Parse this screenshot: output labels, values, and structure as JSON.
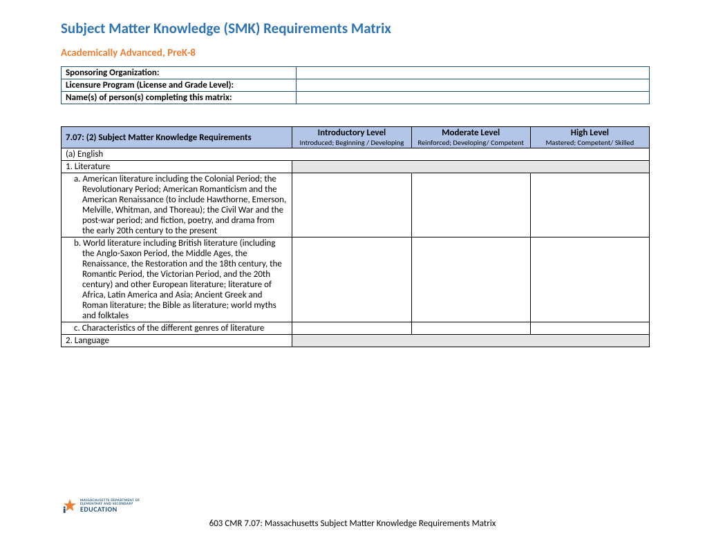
{
  "colors": {
    "title": "#2e74b5",
    "subtitle": "#ed7d31",
    "info_border": "#1f4e79",
    "header_bg": "#b4c6e7",
    "shaded_bg": "#e7e6e6",
    "text": "#000000",
    "logo_blue": "#1f4e79",
    "logo_orange": "#ed7d31"
  },
  "title": "Subject Matter Knowledge (SMK) Requirements Matrix",
  "subtitle": "Academically Advanced, PreK-8",
  "info_rows": [
    {
      "label": "Sponsoring Organization:",
      "value": ""
    },
    {
      "label": "Licensure Program (License and Grade Level):",
      "value": ""
    },
    {
      "label": "Name(s) of person(s) completing this matrix:",
      "value": ""
    }
  ],
  "matrix": {
    "req_header": "7.07: (2) Subject Matter Knowledge Requirements",
    "levels": [
      {
        "name": "Introductory Level",
        "desc": "Introduced; Beginning / Developing"
      },
      {
        "name": "Moderate Level",
        "desc": "Reinforced; Developing/ Competent"
      },
      {
        "name": "High Level",
        "desc": "Mastered; Competent/ Skilled"
      }
    ],
    "rows": [
      {
        "type": "section",
        "text": "(a) English",
        "shaded": false,
        "span": true
      },
      {
        "type": "section",
        "text": "1. Literature",
        "shaded": true,
        "span": false
      },
      {
        "type": "item",
        "text": "a. American literature including the Colonial Period; the Revolutionary Period; American Romanticism and the American Renaissance (to include Hawthorne, Emerson, Melville, Whitman, and Thoreau); the Civil War and the post-war period; and fiction, poetry, and drama from the early 20th century to the present"
      },
      {
        "type": "item",
        "text": "b. World literature including British literature (including the Anglo-Saxon Period, the Middle Ages, the Renaissance, the Restoration and the 18th century, the Romantic Period, the Victorian Period, and the 20th century) and other European literature; literature of Africa, Latin America and Asia; Ancient Greek and Roman literature; the Bible as literature; world myths and folktales"
      },
      {
        "type": "item",
        "text": "c. Characteristics of the different genres of literature"
      },
      {
        "type": "section",
        "text": "2. Language",
        "shaded": true,
        "span": false
      }
    ]
  },
  "footer_text": "603 CMR 7.07: Massachusetts Subject Matter Knowledge Requirements Matrix",
  "logo": {
    "line1": "MASSACHUSETTS DEPARTMENT OF",
    "line2": "ELEMENTARY AND SECONDARY",
    "line3": "EDUCATION"
  }
}
